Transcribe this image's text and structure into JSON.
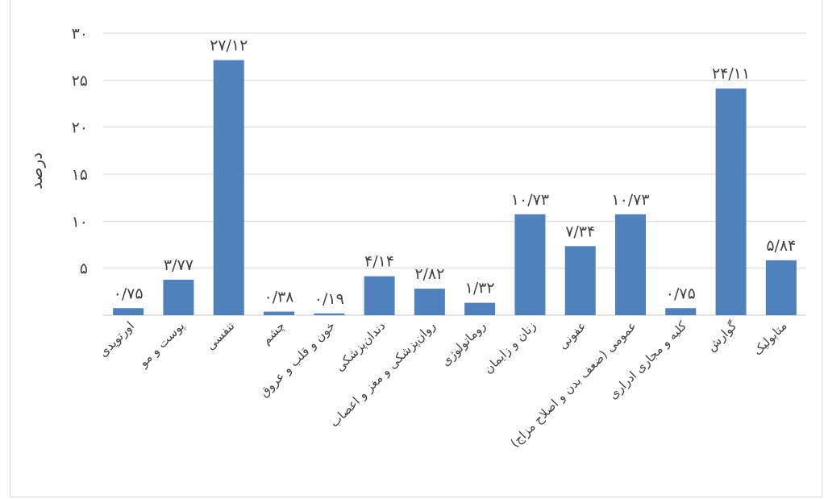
{
  "chart_data": {
    "type": "bar",
    "ylabel": "درصد",
    "xlabel": "",
    "title": "",
    "ylim": [
      0,
      30
    ],
    "grid": true,
    "yticks": [
      {
        "value": 0,
        "label": ""
      },
      {
        "value": 5,
        "label": "۵"
      },
      {
        "value": 10,
        "label": "۱۰"
      },
      {
        "value": 15,
        "label": "۱۵"
      },
      {
        "value": 20,
        "label": "۲۰"
      },
      {
        "value": 25,
        "label": "۲۵"
      },
      {
        "value": 30,
        "label": "۳۰"
      }
    ],
    "categories": [
      "اورتوپدی",
      "پوست و مو",
      "تنفسی",
      "چشم",
      "خون و قلب و عروق",
      "دندان‌پزشکی",
      "روان‌پزشکی و مغز و اعصاب",
      "روماتولوژی",
      "زنان و زایمان",
      "عفونی",
      "عمومی (ضعف بدن و اصلاح مزاج)",
      "کلیه و مجاری ادراری",
      "گوارش",
      "متابولیک"
    ],
    "values": [
      0.75,
      3.77,
      27.12,
      0.38,
      0.19,
      4.14,
      2.82,
      1.32,
      10.73,
      7.34,
      10.73,
      0.75,
      24.11,
      5.84
    ],
    "value_labels": [
      "۰/۷۵",
      "۳/۷۷",
      "۲۷/۱۲",
      "۰/۳۸",
      "۰/۱۹",
      "۴/۱۴",
      "۲/۸۲",
      "۱/۳۲",
      "۱۰/۷۳",
      "۷/۳۴",
      "۱۰/۷۳",
      "۰/۷۵",
      "۲۴/۱۱",
      "۵/۸۴"
    ],
    "bar_color": "#4f81bd",
    "grid_color": "#d9d9d9"
  }
}
